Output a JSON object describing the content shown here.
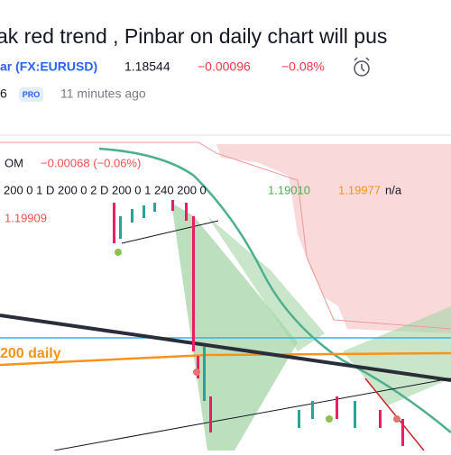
{
  "header": {
    "title": "ak red trend , Pinbar on daily chart will pus",
    "symbol": "ar (FX:EURUSD)",
    "price": "1.18544",
    "change": "−0.00096",
    "change_percent": "−0.08%",
    "author": "6",
    "badge": "PRO",
    "time": "11 minutes ago"
  },
  "chart": {
    "legend_symbol": "OM",
    "legend_change": "−0.00068 (−0.06%)",
    "indicator_params": "200 0 1 D 200 0 2 D 200 0 1 240 200 0",
    "value_green": "1.19010",
    "value_orange": "1.19977",
    "value_na": "n/a",
    "value_red": "1.19909",
    "ma_label": "200 daily"
  }
}
